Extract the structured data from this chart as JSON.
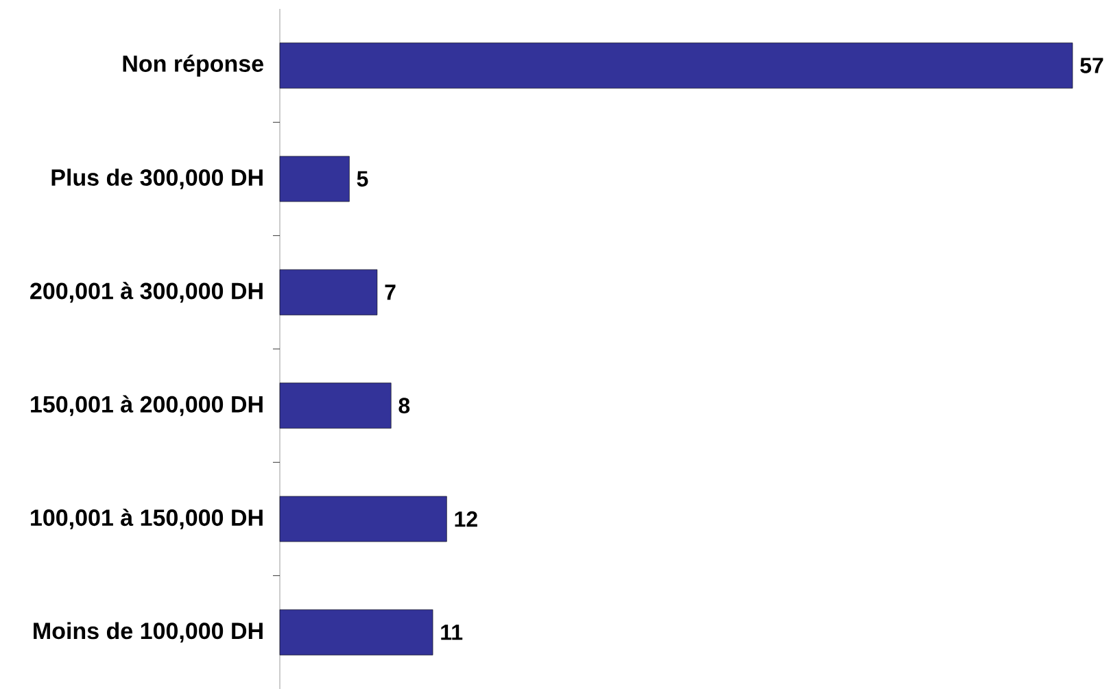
{
  "chart_data": {
    "type": "bar",
    "orientation": "horizontal",
    "categories": [
      "Non réponse",
      "Plus de 300,000 DH",
      "200,001 à 300,000 DH",
      "150,001 à 200,000 DH",
      "100,001 à 150,000 DH",
      "Moins de 100,000 DH"
    ],
    "values": [
      57,
      5,
      7,
      8,
      12,
      11
    ],
    "color": "#333399",
    "xlim": [
      0,
      57
    ],
    "data_labels": true
  }
}
